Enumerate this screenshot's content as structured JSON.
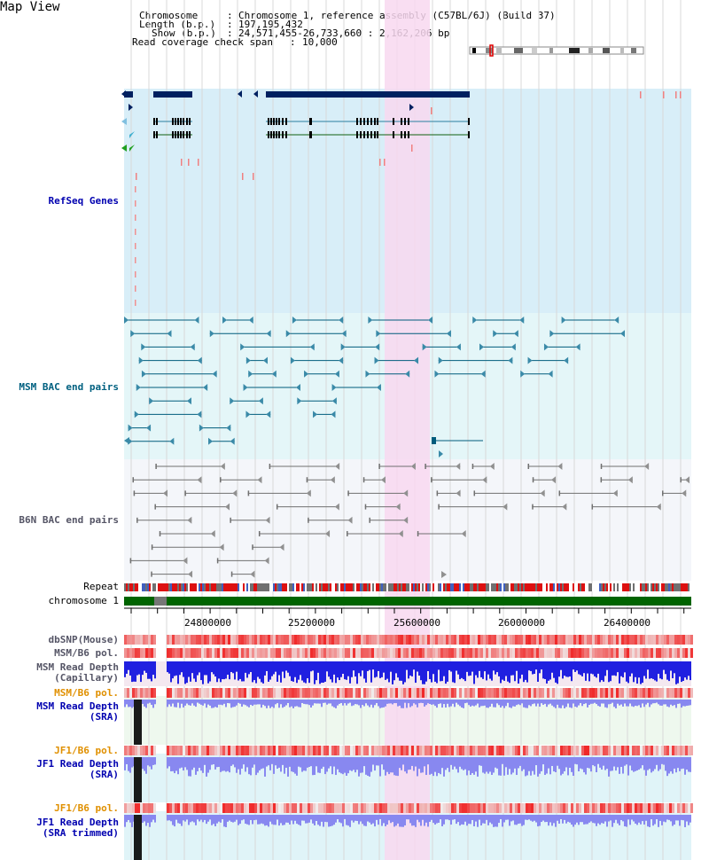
{
  "app": {
    "title": "Map View"
  },
  "header": {
    "chromosome_label": "Chromosome",
    "chromosome_value": "Chromosome 1, reference assembly (C57BL/6J) (Build 37)",
    "length_label": "Length (b.p.)",
    "length_value": "197,195,432",
    "show_label": "Show (b.p.)",
    "show_value": "24,571,455-26,733,660 : 2,162,206 bp",
    "coverage_label": "Read coverage check span",
    "coverage_value": "10,000"
  },
  "tracks": {
    "refseq": "RefSeq Genes",
    "msm_bac": "MSM BAC end pairs",
    "b6n_bac": "B6N BAC end pairs",
    "repeat": "Repeat",
    "chromosome": "chromosome 1",
    "dbsnp": "dbSNP(Mouse)",
    "msm_b6_pol_1": "MSM/B6 pol.",
    "msm_read_depth_cap_1": "MSM Read Depth",
    "msm_read_depth_cap_2": "(Capillary)",
    "msm_b6_pol_2": "MSM/B6 pol.",
    "msm_read_depth_sra_1": "MSM Read Depth",
    "msm_read_depth_sra_2": "(SRA)",
    "jf1_b6_pol_1": "JF1/B6 pol.",
    "jf1_read_depth_sra_1": "JF1 Read Depth",
    "jf1_read_depth_sra_2": "(SRA)",
    "jf1_b6_pol_2": "JF1/B6 pol.",
    "jf1_read_depth_trim_1": "JF1 Read Depth",
    "jf1_read_depth_trim_2": "(SRA trimmed)"
  },
  "axis": {
    "ticks": [
      "24800000",
      "25200000",
      "25600000",
      "26000000",
      "26400000"
    ]
  },
  "colors": {
    "refseq_bg": "#d8eef8",
    "msm_bg": "#e4f6f8",
    "b6n_bg": "#f4f6fa",
    "highlight": "#f8d8f0",
    "gene": "#002060",
    "msm_pair": "#005c7c",
    "b6n_pair": "#707070",
    "chromosome": "#006400",
    "depth_blue": "#2020e0",
    "depth_light": "#8888f0",
    "snp_red": "#f03030"
  }
}
